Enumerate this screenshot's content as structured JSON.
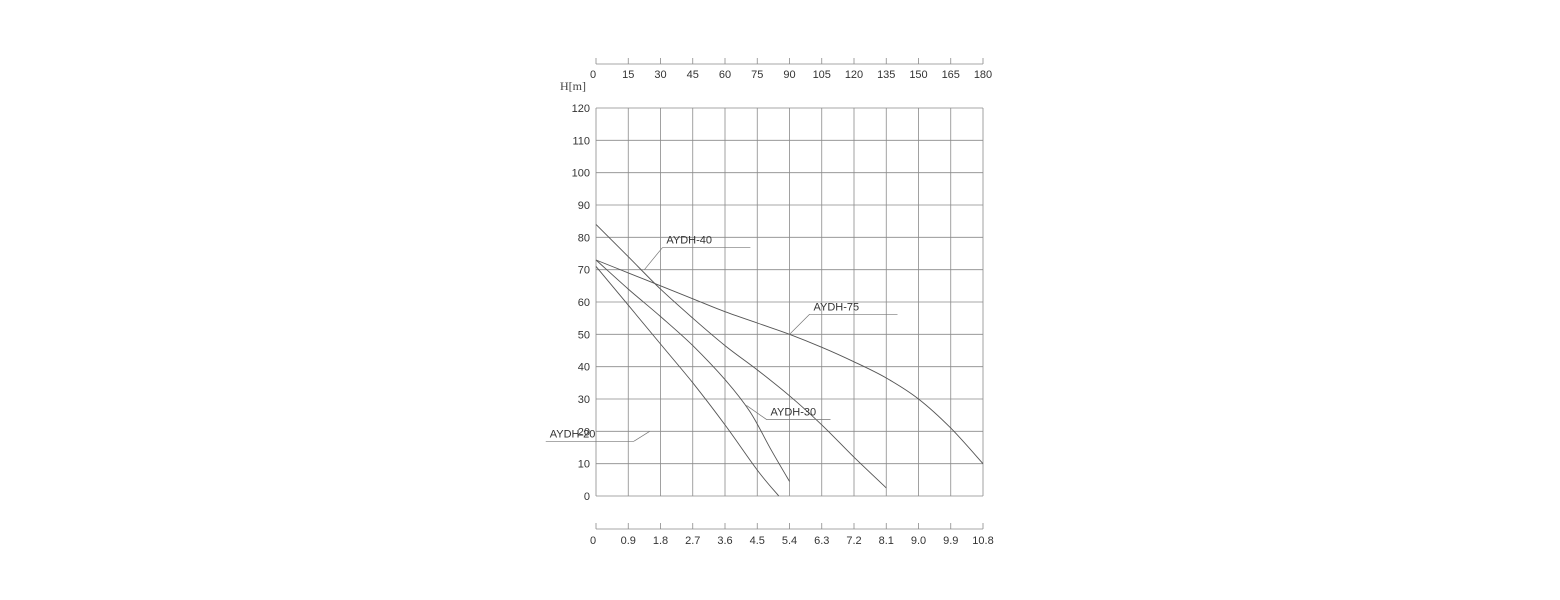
{
  "chart_data": {
    "type": "line",
    "ylabel": "H[m]",
    "ylim": [
      0,
      120
    ],
    "yticks": [
      "0",
      "10",
      "20",
      "30",
      "40",
      "50",
      "60",
      "70",
      "80",
      "90",
      "100",
      "110",
      "120"
    ],
    "xlim": [
      0,
      10.8
    ],
    "xticks": [
      "0",
      "0.9",
      "1.8",
      "2.7",
      "3.6",
      "4.5",
      "5.4",
      "6.3",
      "7.2",
      "8.1",
      "9.0",
      "9.9",
      "10.8"
    ],
    "x2lim": [
      0,
      180
    ],
    "x2ticks": [
      "0",
      "15",
      "30",
      "45",
      "60",
      "75",
      "90",
      "105",
      "120",
      "135",
      "150",
      "165",
      "180"
    ],
    "grid": true,
    "series": [
      {
        "name": "AYDH-20",
        "label_anchor": [
          1.5,
          20
        ],
        "points": [
          [
            0,
            71
          ],
          [
            0.9,
            59
          ],
          [
            1.8,
            47
          ],
          [
            2.7,
            35
          ],
          [
            3.6,
            22
          ],
          [
            4.5,
            8
          ],
          [
            5.1,
            0
          ]
        ]
      },
      {
        "name": "AYDH-30",
        "label_anchor": [
          4.2,
          28
        ],
        "points": [
          [
            0,
            73
          ],
          [
            0.9,
            64
          ],
          [
            1.8,
            55.5
          ],
          [
            2.7,
            46.5
          ],
          [
            3.6,
            36
          ],
          [
            4.3,
            26
          ],
          [
            4.9,
            14
          ],
          [
            5.4,
            4.5
          ]
        ]
      },
      {
        "name": "AYDH-40",
        "label_anchor": [
          1.35,
          70
        ],
        "points": [
          [
            0,
            84
          ],
          [
            0.9,
            74
          ],
          [
            1.8,
            64
          ],
          [
            2.7,
            55
          ],
          [
            3.6,
            46.5
          ],
          [
            4.5,
            39
          ],
          [
            5.4,
            31
          ],
          [
            6.3,
            22
          ],
          [
            7.2,
            12
          ],
          [
            8.1,
            2.5
          ]
        ]
      },
      {
        "name": "AYDH-75",
        "label_anchor": [
          5.4,
          50
        ],
        "points": [
          [
            0,
            73
          ],
          [
            0.9,
            69
          ],
          [
            1.8,
            65
          ],
          [
            2.7,
            61
          ],
          [
            3.6,
            57
          ],
          [
            4.5,
            53.5
          ],
          [
            5.4,
            50
          ],
          [
            6.3,
            46
          ],
          [
            7.2,
            41.5
          ],
          [
            8.1,
            36.5
          ],
          [
            9.0,
            30
          ],
          [
            9.9,
            21
          ],
          [
            10.8,
            10
          ]
        ]
      }
    ]
  }
}
